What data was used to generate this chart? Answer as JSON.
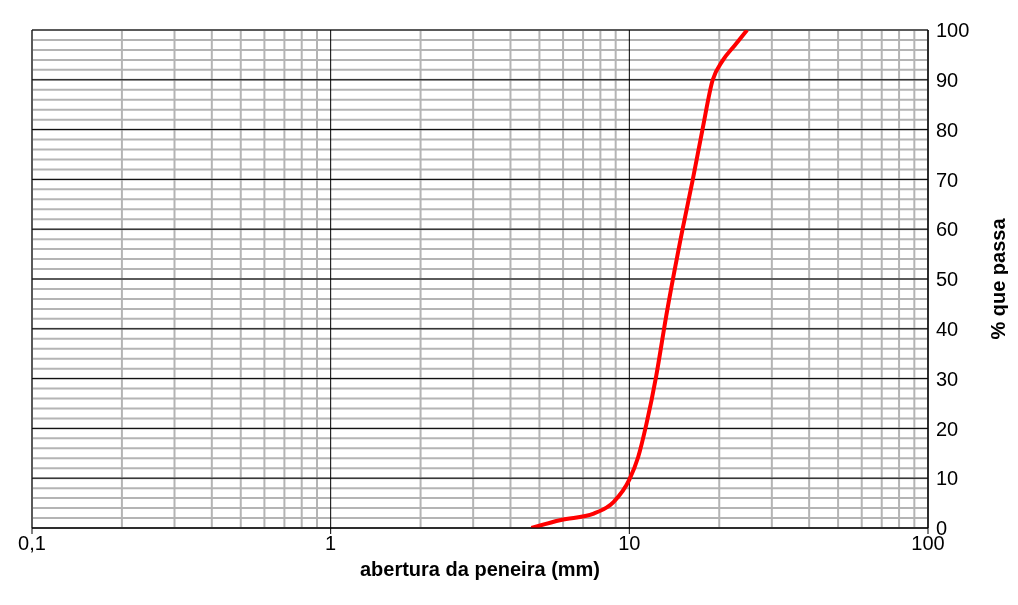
{
  "chart_data": {
    "type": "line",
    "xlabel": "abertura da peneira (mm)",
    "ylabel": "% que passa",
    "x": [
      4.7,
      5.9,
      7.6,
      8.85,
      10,
      10.7,
      11.4,
      12.3,
      13.3,
      15.1,
      16.3,
      17.6,
      19.0,
      20.5,
      22.6,
      24.8
    ],
    "series": [
      {
        "color": "#ff0000",
        "values": [
          0,
          1.6,
          2.9,
          5.2,
          9.7,
          14.2,
          20.8,
          30.5,
          42.7,
          60.2,
          69.9,
          80.2,
          89.9,
          93.8,
          97,
          100
        ]
      }
    ],
    "log": "x",
    "xlim": [
      0.1,
      100
    ],
    "xticks": [
      {
        "value": 0.1,
        "label": "0,1"
      },
      1,
      10,
      100
    ],
    "ylim": [
      0,
      100
    ],
    "yticks": [
      0,
      10,
      20,
      30,
      40,
      50,
      60,
      70,
      80,
      90,
      100
    ],
    "grid": true,
    "marker": "none",
    "line_style": "solid"
  }
}
